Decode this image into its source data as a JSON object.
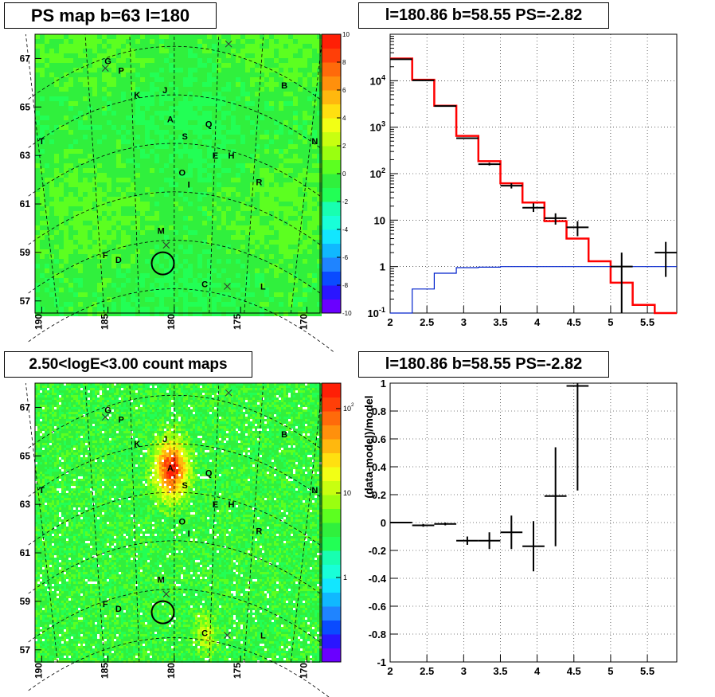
{
  "panels": {
    "top_left_title": "PS map b=63 l=180",
    "top_right_title": "l=180.86 b=58.55 PS=-2.82",
    "bottom_left_title": "2.50<logE<3.00 count maps",
    "bottom_right_title": "l=180.86 b=58.55 PS=-2.82"
  },
  "colors": {
    "map_green": "#2fe83a",
    "model_line": "#ff0000",
    "data_marks": "#000000",
    "background_line": "#0022cc",
    "grid": "#000000"
  },
  "chart_data": [
    {
      "type": "heatmap",
      "title": "PS map b=63 l=180",
      "xlabel": "",
      "ylabel": "",
      "x_ticks": [
        "190",
        "185",
        "180",
        "175",
        "170"
      ],
      "y_ticks": [
        "57",
        "59",
        "61",
        "63",
        "65",
        "67"
      ],
      "xlim": [
        190.5,
        169.0
      ],
      "ylim": [
        56.5,
        68.0
      ],
      "colorbar_ticks": [
        "10",
        "8",
        "6",
        "4",
        "2",
        "0",
        "-2",
        "-4",
        "-6",
        "-8",
        "-10"
      ],
      "colorbar_range": [
        -10,
        10
      ],
      "sources": [
        {
          "label": "G",
          "l": 185.0,
          "b": 66.9
        },
        {
          "label": "P",
          "l": 184.0,
          "b": 66.5
        },
        {
          "label": "K",
          "l": 182.8,
          "b": 65.5
        },
        {
          "label": "J",
          "l": 180.7,
          "b": 65.7
        },
        {
          "label": "B",
          "l": 171.7,
          "b": 65.9
        },
        {
          "label": "A",
          "l": 180.3,
          "b": 64.5
        },
        {
          "label": "Q",
          "l": 177.4,
          "b": 64.3
        },
        {
          "label": "S",
          "l": 179.2,
          "b": 63.8
        },
        {
          "label": "E",
          "l": 176.9,
          "b": 63.0
        },
        {
          "label": "H",
          "l": 175.7,
          "b": 63.0
        },
        {
          "label": "T",
          "l": 190.0,
          "b": 63.6
        },
        {
          "label": "N",
          "l": 169.4,
          "b": 63.6
        },
        {
          "label": "O",
          "l": 179.4,
          "b": 62.3
        },
        {
          "label": "I",
          "l": 178.9,
          "b": 61.8
        },
        {
          "label": "R",
          "l": 173.6,
          "b": 61.9
        },
        {
          "label": "M",
          "l": 181.0,
          "b": 59.9
        },
        {
          "label": "F",
          "l": 185.2,
          "b": 58.9
        },
        {
          "label": "D",
          "l": 184.2,
          "b": 58.7
        },
        {
          "label": "C",
          "l": 177.7,
          "b": 57.7
        },
        {
          "label": "L",
          "l": 173.3,
          "b": 57.6
        }
      ],
      "cross_markers": [
        {
          "l": 175.9,
          "b": 67.6
        },
        {
          "l": 185.2,
          "b": 66.6
        },
        {
          "l": 180.6,
          "b": 59.3
        },
        {
          "l": 176.0,
          "b": 57.6
        }
      ],
      "circle": {
        "l": 180.86,
        "b": 58.55
      }
    },
    {
      "type": "line",
      "title": "l=180.86 b=58.55 PS=-2.82",
      "xlabel": "",
      "ylabel": "",
      "y_scale": "log",
      "xlim": [
        2.0,
        5.9
      ],
      "ylim": [
        0.1,
        100000
      ],
      "x_ticks": [
        "2",
        "2.5",
        "3",
        "3.5",
        "4",
        "4.5",
        "5",
        "5.5"
      ],
      "y_ticks": [
        "10^-1",
        "1",
        "10",
        "10^2",
        "10^3",
        "10^4"
      ],
      "grid": true,
      "bin_edges": [
        2.0,
        2.3,
        2.6,
        2.9,
        3.2,
        3.5,
        3.8,
        4.1,
        4.4,
        4.7,
        5.0,
        5.3,
        5.6,
        5.9
      ],
      "series": [
        {
          "kind": "step",
          "color": "#ff0000",
          "values": [
            30000,
            10500,
            2900,
            650,
            185,
            62,
            24,
            9.5,
            4.0,
            1.3,
            0.45,
            0.15,
            0.1
          ]
        },
        {
          "kind": "step",
          "color": "#0022cc",
          "values": [
            0.05,
            0.33,
            0.72,
            0.95,
            0.97,
            1.0,
            1.0,
            1.0,
            1.0,
            1.0,
            1.0,
            1.0,
            1.0
          ]
        },
        {
          "kind": "errorbars",
          "color": "#000000",
          "points": [
            {
              "x": 2.15,
              "y": 29000,
              "lo": 28700,
              "hi": 29300
            },
            {
              "x": 2.45,
              "y": 10200,
              "lo": 10000,
              "hi": 10400
            },
            {
              "x": 2.75,
              "y": 2850,
              "lo": 2800,
              "hi": 2900
            },
            {
              "x": 3.05,
              "y": 580,
              "lo": 560,
              "hi": 600
            },
            {
              "x": 3.35,
              "y": 160,
              "lo": 150,
              "hi": 172
            },
            {
              "x": 3.65,
              "y": 55,
              "lo": 48,
              "hi": 62
            },
            {
              "x": 3.95,
              "y": 18.5,
              "lo": 15,
              "hi": 23
            },
            {
              "x": 4.25,
              "y": 11,
              "lo": 8,
              "hi": 14
            },
            {
              "x": 4.55,
              "y": 7,
              "lo": 4.5,
              "hi": 9.5
            },
            {
              "x": 5.15,
              "y": 1.0,
              "lo": 0.1,
              "hi": 2.0
            },
            {
              "x": 5.75,
              "y": 2.0,
              "lo": 0.6,
              "hi": 3.4
            }
          ]
        }
      ]
    },
    {
      "type": "heatmap",
      "title": "2.50<logE<3.00 count maps",
      "xlabel": "",
      "ylabel": "",
      "x_ticks": [
        "190",
        "185",
        "180",
        "175",
        "170"
      ],
      "y_ticks": [
        "57",
        "59",
        "61",
        "63",
        "65",
        "67"
      ],
      "xlim": [
        190.5,
        169.0
      ],
      "ylim": [
        56.5,
        68.0
      ],
      "colorbar_ticks": [
        "10^2",
        "10",
        "1"
      ],
      "colorbar_range": [
        0.1,
        200
      ],
      "bright_sources": [
        {
          "label": "A",
          "l": 180.3,
          "b": 64.5,
          "peak": 150
        },
        {
          "label": "C",
          "l": 177.7,
          "b": 57.7,
          "peak": 8
        }
      ]
    },
    {
      "type": "scatter",
      "title": "l=180.86 b=58.55 PS=-2.82",
      "xlabel": "",
      "ylabel": "(data-model)/model",
      "xlim": [
        2.0,
        5.9
      ],
      "ylim": [
        -1.0,
        1.0
      ],
      "x_ticks": [
        "2",
        "2.5",
        "3",
        "3.5",
        "4",
        "4.5",
        "5",
        "5.5"
      ],
      "y_ticks": [
        "1",
        "0.8",
        "0.6",
        "0.4",
        "0.2",
        "0",
        "-0.2",
        "-0.4",
        "-0.6",
        "-0.8",
        "-1"
      ],
      "grid": true,
      "points": [
        {
          "x": 2.15,
          "y": 0.0,
          "lo": -0.005,
          "hi": 0.005,
          "xlo": 2.0,
          "xhi": 2.3
        },
        {
          "x": 2.45,
          "y": -0.02,
          "lo": -0.03,
          "hi": -0.01,
          "xlo": 2.3,
          "xhi": 2.6
        },
        {
          "x": 2.75,
          "y": -0.01,
          "lo": -0.02,
          "hi": 0.0,
          "xlo": 2.6,
          "xhi": 2.9
        },
        {
          "x": 3.05,
          "y": -0.13,
          "lo": -0.16,
          "hi": -0.1,
          "xlo": 2.9,
          "xhi": 3.2
        },
        {
          "x": 3.35,
          "y": -0.13,
          "lo": -0.19,
          "hi": -0.07,
          "xlo": 3.2,
          "xhi": 3.5
        },
        {
          "x": 3.65,
          "y": -0.07,
          "lo": -0.19,
          "hi": 0.05,
          "xlo": 3.5,
          "xhi": 3.8
        },
        {
          "x": 3.95,
          "y": -0.17,
          "lo": -0.35,
          "hi": 0.01,
          "xlo": 3.8,
          "xhi": 4.1
        },
        {
          "x": 4.25,
          "y": 0.19,
          "lo": -0.17,
          "hi": 0.54,
          "xlo": 4.1,
          "xhi": 4.4
        },
        {
          "x": 4.55,
          "y": 0.98,
          "lo": 0.23,
          "hi": 1.0,
          "xlo": 4.4,
          "xhi": 4.7
        }
      ]
    }
  ]
}
